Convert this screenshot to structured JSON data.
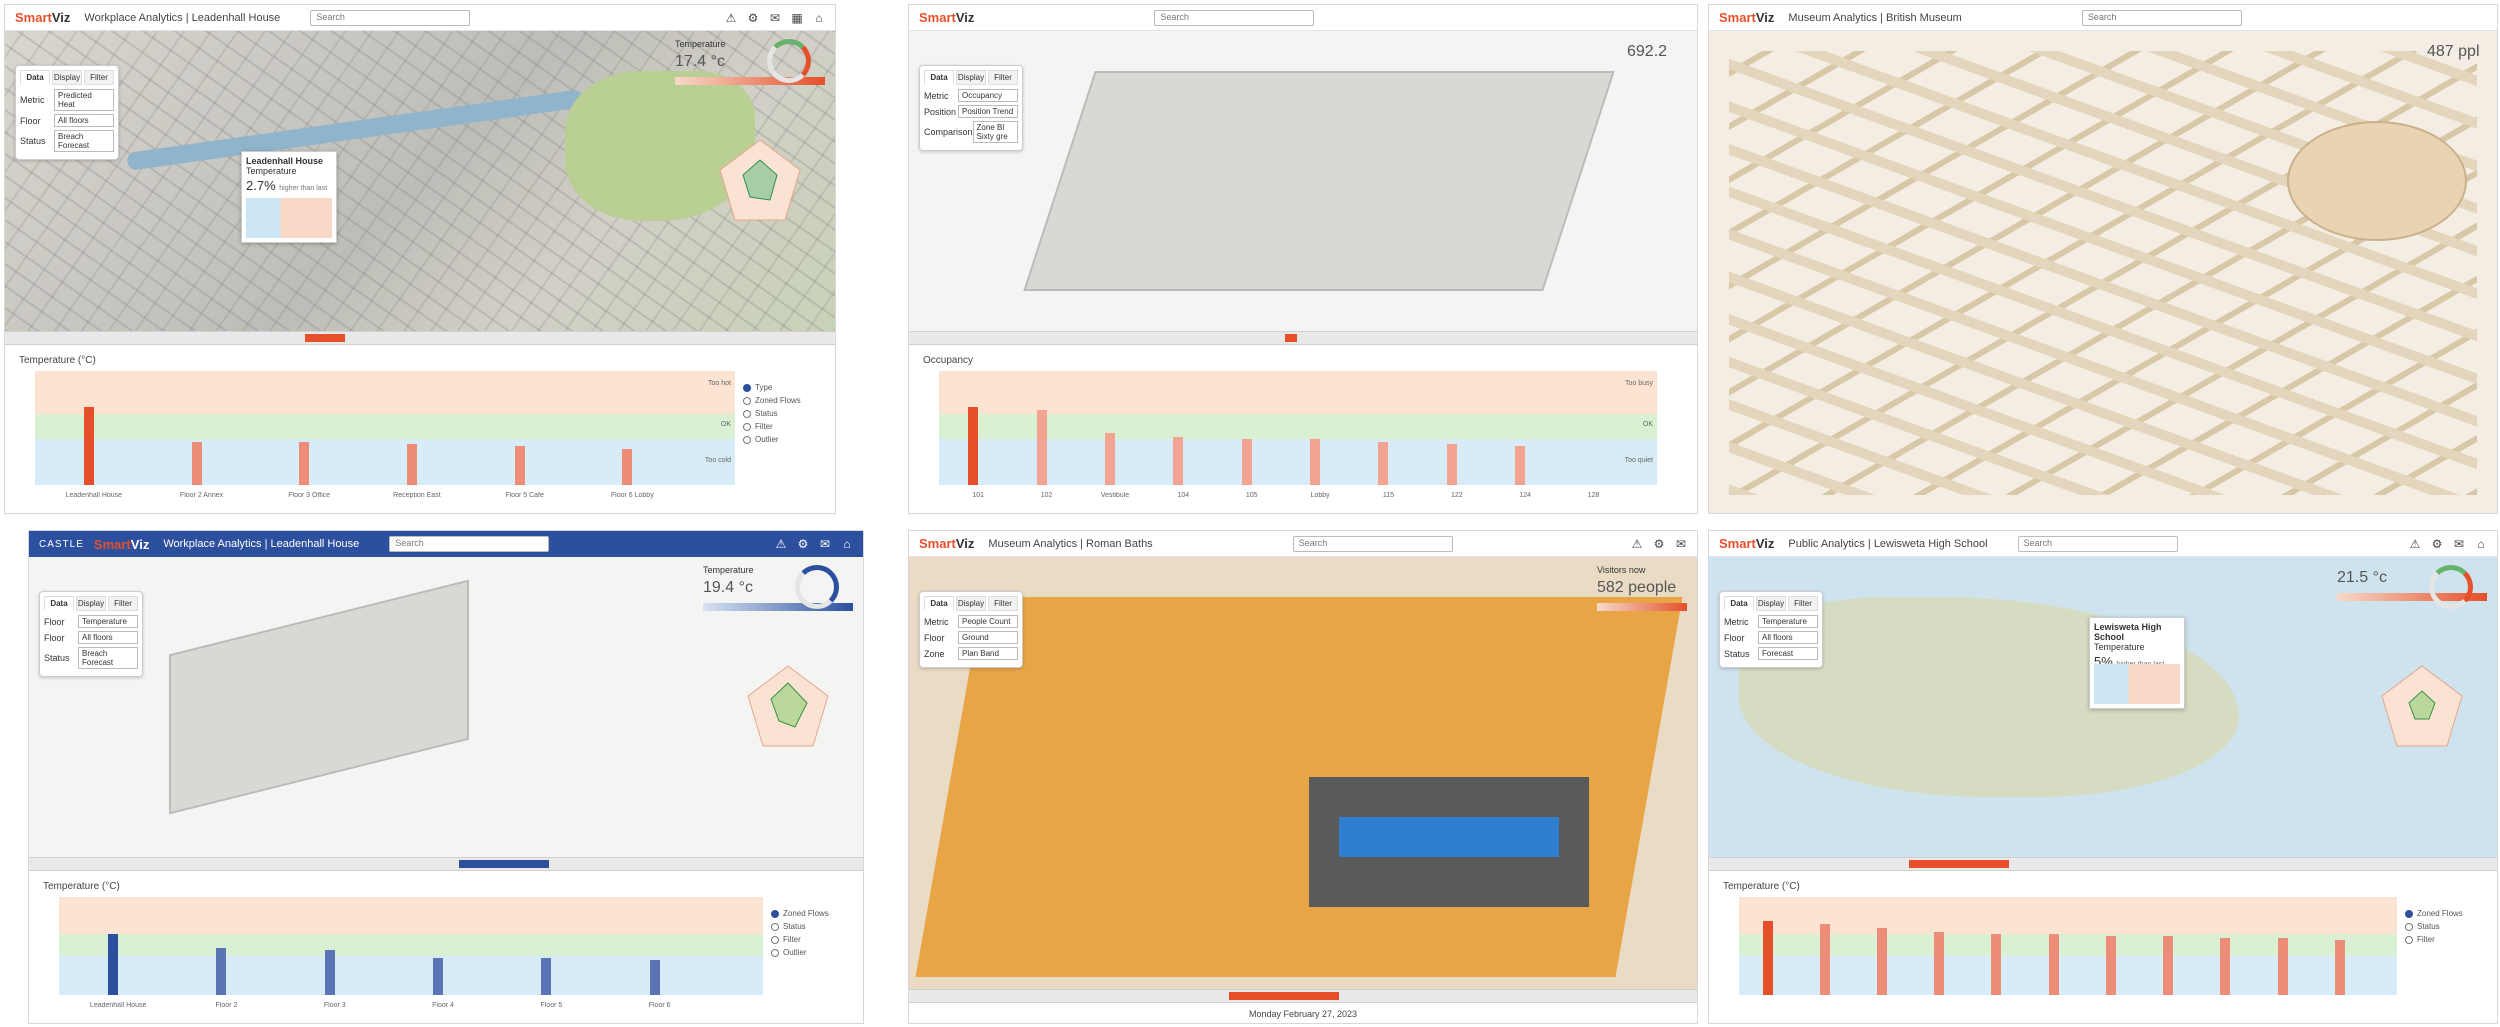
{
  "panels": [
    {
      "app": {
        "brand_a": "Smart",
        "brand_b": "Viz",
        "title": "Workplace Analytics | Leadenhall House",
        "search_placeholder": "Search"
      },
      "controls": {
        "tabs": [
          "Data",
          "Display",
          "Filter"
        ],
        "rows": [
          {
            "label": "Metric",
            "value": "Predicted Heat"
          },
          {
            "label": "Floor",
            "value": "All floors"
          },
          {
            "label": "Status",
            "value": "Breach Forecast"
          }
        ]
      },
      "temperature": {
        "label": "Temperature",
        "value": "17.4 °c"
      },
      "callout": {
        "title": "Leadenhall House",
        "subtitle": "Temperature",
        "value": "2.7%",
        "note": "higher than last"
      },
      "chart": {
        "title": "Temperature (°C)",
        "band_labels": [
          "Too hot",
          "OK",
          "Too cold"
        ],
        "categories": [
          "Leadenhall House",
          "Floor 2 Annex",
          "Floor 3 Office",
          "Reception East",
          "Floor 5 Cafe",
          "Floor 6 Lobby"
        ],
        "values": [
          34,
          19,
          19,
          18,
          17,
          16
        ],
        "ymax": 50,
        "legend": [
          "Type",
          "Zoned Flows",
          "Status",
          "Filter",
          "Outlier"
        ]
      },
      "colors": {
        "accent": "#e5502b",
        "highlight": "#e5502b",
        "bar": "#ee8c7a"
      }
    },
    {
      "app": {
        "brand_a": "Smart",
        "brand_b": "Viz",
        "title": "",
        "search_placeholder": "Search"
      },
      "controls": {
        "tabs": [
          "Data",
          "Display",
          "Filter"
        ],
        "rows": [
          {
            "label": "Metric",
            "value": "Occupancy"
          },
          {
            "label": "Position",
            "value": "Position Trend"
          },
          {
            "label": "Comparison",
            "value": "Zone Bl Sixty gre"
          }
        ]
      },
      "temperature": {
        "label": "",
        "value": "692.2"
      },
      "callout": {
        "title": "",
        "subtitle": "",
        "value": "",
        "note": ""
      },
      "chart": {
        "title": "Occupancy",
        "band_labels": [
          "Too busy",
          "OK",
          "Too quiet"
        ],
        "categories": [
          "101",
          "102",
          "Vestibule",
          "104",
          "105",
          "Lobby",
          "115",
          "122",
          "124",
          "128"
        ],
        "values": [
          34,
          33,
          23,
          21,
          20,
          20,
          19,
          18,
          17,
          0
        ],
        "ymax": 50,
        "legend": []
      },
      "colors": {
        "accent": "#e5502b",
        "highlight": "#e5502b",
        "bar": "#f2a392"
      }
    },
    {
      "app": {
        "brand_a": "Smart",
        "brand_b": "Viz",
        "title": "Museum Analytics | British Museum",
        "search_placeholder": "Search"
      },
      "temperature": {
        "label": "",
        "value": "487 ppl"
      },
      "colors": {
        "accent": "#2c6fb5"
      }
    },
    {
      "app": {
        "brand_a": "Smart",
        "brand_b": "Viz",
        "title": "Workplace Analytics | Leadenhall House",
        "prefix": "CASTLE",
        "search_placeholder": "Search"
      },
      "controls": {
        "tabs": [
          "Data",
          "Display",
          "Filter"
        ],
        "rows": [
          {
            "label": "Floor",
            "value": "Temperature"
          },
          {
            "label": "Floor",
            "value": "All floors"
          },
          {
            "label": "Status",
            "value": "Breach Forecast"
          }
        ]
      },
      "temperature": {
        "label": "Temperature",
        "value": "19.4 °c"
      },
      "chart": {
        "title": "Temperature (°C)",
        "band_labels": [
          "",
          "",
          ""
        ],
        "categories": [
          "Leadenhall House",
          "Floor 2",
          "Floor 3",
          "Floor 4",
          "Floor 5",
          "Floor 6"
        ],
        "values": [
          31,
          24,
          23,
          19,
          19,
          18
        ],
        "ymax": 50,
        "legend": [
          "Zoned Flows",
          "Status",
          "Filter",
          "Outlier"
        ]
      },
      "colors": {
        "accent": "#2c4f9e",
        "highlight": "#2c4f9e",
        "bar": "#5b74b3"
      }
    },
    {
      "app": {
        "brand_a": "Smart",
        "brand_b": "Viz",
        "title": "Museum Analytics | Roman Baths",
        "search_placeholder": "Search"
      },
      "controls": {
        "tabs": [
          "Data",
          "Display",
          "Filter"
        ],
        "rows": [
          {
            "label": "Metric",
            "value": "People Count"
          },
          {
            "label": "Floor",
            "value": "Ground"
          },
          {
            "label": "Zone",
            "value": "Plan Band"
          }
        ]
      },
      "temperature": {
        "label": "Visitors now",
        "value": "582 people"
      },
      "footer": "Monday February 27, 2023",
      "colors": {
        "accent": "#e5502b"
      }
    },
    {
      "app": {
        "brand_a": "Smart",
        "brand_b": "Viz",
        "title": "Public Analytics | Lewisweta High School",
        "search_placeholder": "Search"
      },
      "controls": {
        "tabs": [
          "Data",
          "Display",
          "Filter"
        ],
        "rows": [
          {
            "label": "Metric",
            "value": "Temperature"
          },
          {
            "label": "Floor",
            "value": "All floors"
          },
          {
            "label": "Status",
            "value": "Forecast"
          }
        ]
      },
      "temperature": {
        "label": "",
        "value": "21.5 °c"
      },
      "callout": {
        "title": "Lewisweta High School",
        "subtitle": "Temperature",
        "value": "5%",
        "note": "higher than last"
      },
      "chart": {
        "title": "Temperature (°C)",
        "band_labels": [
          "",
          "",
          ""
        ],
        "categories": [
          "",
          "",
          "",
          "",
          "",
          "",
          "",
          "",
          "",
          "",
          ""
        ],
        "values": [
          38,
          36,
          34,
          32,
          31,
          31,
          30,
          30,
          29,
          29,
          28
        ],
        "ymax": 50,
        "legend": [
          "Zoned Flows",
          "Status",
          "Filter"
        ]
      },
      "colors": {
        "accent": "#e5502b",
        "highlight": "#e5502b",
        "bar": "#ee8c7a"
      }
    }
  ]
}
